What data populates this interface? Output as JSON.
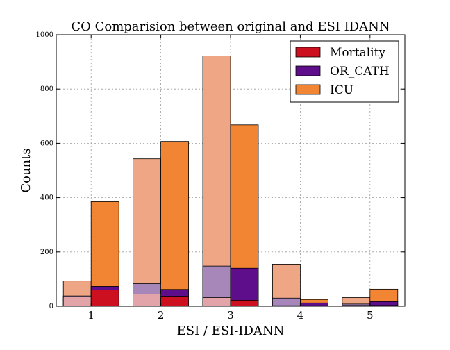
{
  "chart_data": {
    "type": "bar",
    "title": "CO Comparision between original and ESI IDANN",
    "xlabel": "ESI / ESI-IDANN",
    "ylabel": "Counts",
    "ylim": [
      0,
      1000
    ],
    "yticks": [
      0,
      200,
      400,
      600,
      800,
      1000
    ],
    "categories": [
      "1",
      "2",
      "3",
      "4",
      "5"
    ],
    "groups": [
      "ESI",
      "ESI-IDANN"
    ],
    "grid": true,
    "legend_position": "top-right",
    "series": [
      {
        "name": "Mortality",
        "color": "#cc1020",
        "light_color": "#e2a4a8",
        "esi": [
          35,
          45,
          32,
          2,
          3
        ],
        "esi_idann": [
          60,
          37,
          22,
          2,
          3
        ]
      },
      {
        "name": "OR_CATH",
        "color": "#5e0e8a",
        "light_color": "#a787ba",
        "esi": [
          38,
          83,
          148,
          30,
          8
        ],
        "esi_idann": [
          73,
          62,
          140,
          12,
          17
        ]
      },
      {
        "name": "ICU",
        "color": "#f28533",
        "light_color": "#eea684",
        "esi": [
          93,
          543,
          922,
          155,
          32
        ],
        "esi_idann": [
          385,
          607,
          668,
          25,
          63
        ]
      }
    ]
  }
}
